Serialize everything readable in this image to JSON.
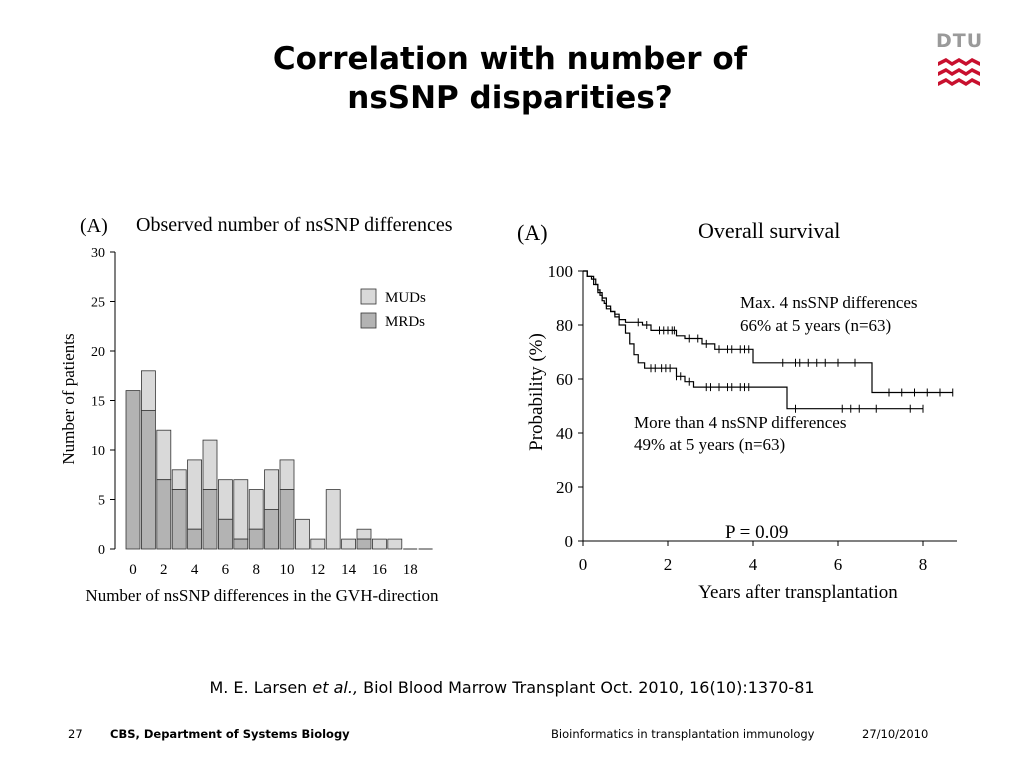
{
  "slide": {
    "title_line1": "Correlation with number of",
    "title_line2": "nsSNP disparities?",
    "logo_text": "DTU",
    "citation": {
      "authors": "M. E. Larsen ",
      "etal": "et al.,",
      "source": " Biol Blood Marrow Transplant Oct. 2010, 16(10):1370-81"
    },
    "footer": {
      "page": "27",
      "department": "CBS, Department of Systems Biology",
      "course": "Bioinformatics in transplantation immunology",
      "date": "27/10/2010"
    }
  },
  "colors": {
    "logo_red": "#c8102e",
    "logo_gray": "#9a9a9a",
    "mud_fill": "#d9d9d9",
    "mrd_fill": "#b3b3b3",
    "bar_stroke": "#333333"
  },
  "chart_data": [
    {
      "type": "bar",
      "stacked": true,
      "panel_label": "(A)",
      "title": "Observed number of nsSNP differences",
      "xlabel": "Number of nsSNP differences in the GVH-direction",
      "ylabel": "Number of patients",
      "ylim": [
        0,
        30
      ],
      "yticks": [
        0,
        5,
        10,
        15,
        20,
        25,
        30
      ],
      "xtick_labels": [
        "0",
        "2",
        "4",
        "6",
        "8",
        "10",
        "12",
        "14",
        "16",
        "18"
      ],
      "categories": [
        0,
        1,
        2,
        3,
        4,
        5,
        6,
        7,
        8,
        9,
        10,
        11,
        12,
        13,
        14,
        15,
        16,
        17,
        18,
        19
      ],
      "series": [
        {
          "name": "MRDs",
          "values": [
            16,
            14,
            7,
            6,
            2,
            6,
            3,
            1,
            2,
            4,
            6,
            0,
            0,
            0,
            0,
            1,
            0,
            0,
            0,
            0
          ]
        },
        {
          "name": "MUDs",
          "values": [
            0,
            4,
            5,
            2,
            7,
            5,
            4,
            6,
            4,
            4,
            3,
            3,
            1,
            6,
            1,
            1,
            1,
            1,
            0,
            0
          ]
        }
      ],
      "totals": [
        16,
        18,
        12,
        8,
        9,
        11,
        7,
        7,
        6,
        8,
        9,
        3,
        1,
        6,
        1,
        2,
        1,
        1,
        0,
        0
      ],
      "legend": {
        "position": "right",
        "entries": [
          "MUDs",
          "MRDs"
        ]
      }
    },
    {
      "type": "line",
      "subtype": "kaplan-meier",
      "panel_label": "(A)",
      "title": "Overall survival",
      "xlabel": "Years after transplantation",
      "ylabel": "Probability (%)",
      "xlim": [
        0,
        8.8
      ],
      "ylim": [
        0,
        100
      ],
      "xticks": [
        0,
        2,
        4,
        6,
        8
      ],
      "yticks": [
        0,
        20,
        40,
        60,
        80,
        100
      ],
      "annotation": "P = 0.09",
      "series": [
        {
          "name": "Max. 4 nsSNP differences",
          "label_line1": "Max. 4 nsSNP differences",
          "label_line2": "66% at 5 years (n=63)",
          "steps": [
            [
              0,
              100
            ],
            [
              0.1,
              98
            ],
            [
              0.2,
              97
            ],
            [
              0.3,
              95
            ],
            [
              0.35,
              93
            ],
            [
              0.4,
              91
            ],
            [
              0.45,
              89
            ],
            [
              0.5,
              88
            ],
            [
              0.55,
              86
            ],
            [
              0.65,
              85
            ],
            [
              0.75,
              84
            ],
            [
              0.85,
              82
            ],
            [
              1.0,
              81
            ],
            [
              1.4,
              80
            ],
            [
              1.6,
              78
            ],
            [
              2.2,
              76
            ],
            [
              2.4,
              75
            ],
            [
              2.8,
              73
            ],
            [
              3.1,
              71
            ],
            [
              4.0,
              66
            ],
            [
              6.8,
              55
            ],
            [
              8.7,
              55
            ]
          ],
          "censored": [
            1.3,
            1.5,
            1.8,
            1.9,
            2.0,
            2.1,
            2.15,
            2.5,
            2.7,
            2.9,
            3.2,
            3.4,
            3.5,
            3.7,
            3.8,
            3.9,
            4.7,
            5.0,
            5.1,
            5.3,
            5.5,
            5.7,
            6.0,
            6.4,
            7.2,
            7.5,
            7.8,
            8.1,
            8.4,
            8.7
          ]
        },
        {
          "name": "More than 4 nsSNP differences",
          "label_line1": "More than 4 nsSNP differences",
          "label_line2": "49% at 5 years (n=63)",
          "steps": [
            [
              0,
              100
            ],
            [
              0.1,
              98
            ],
            [
              0.25,
              95
            ],
            [
              0.35,
              92
            ],
            [
              0.45,
              90
            ],
            [
              0.55,
              87
            ],
            [
              0.65,
              85
            ],
            [
              0.75,
              83
            ],
            [
              0.85,
              80
            ],
            [
              1.0,
              77
            ],
            [
              1.1,
              73
            ],
            [
              1.2,
              69
            ],
            [
              1.3,
              66
            ],
            [
              1.45,
              64
            ],
            [
              2.2,
              61
            ],
            [
              2.4,
              59
            ],
            [
              2.6,
              57
            ],
            [
              4.8,
              49
            ],
            [
              8.0,
              49
            ]
          ],
          "censored": [
            1.6,
            1.7,
            1.85,
            1.95,
            2.05,
            2.2,
            2.3,
            2.5,
            2.9,
            3.0,
            3.2,
            3.4,
            3.5,
            3.7,
            3.8,
            3.9,
            5.0,
            6.1,
            6.3,
            6.5,
            6.9,
            7.7,
            8.0
          ]
        }
      ]
    }
  ]
}
